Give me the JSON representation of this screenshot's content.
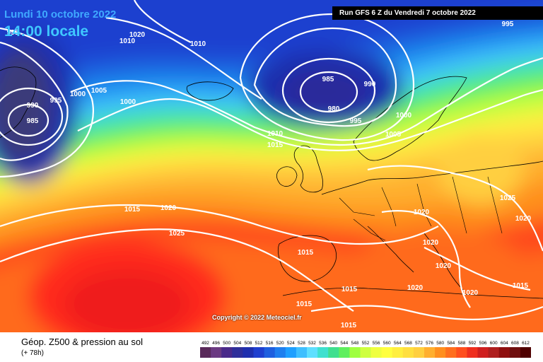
{
  "header": {
    "date_line": "Lundi 10 octobre 2022",
    "time_line": "14:00 locale",
    "run_info": "Run GFS 6 Z du Vendredi 7 octobre 2022"
  },
  "copyright": "Copyright © 2022 Meteociel.fr",
  "footer": {
    "title": "Géop. Z500 & pression au sol",
    "subtitle": "(+ 78h)"
  },
  "scale": {
    "labels": [
      "492",
      "496",
      "500",
      "504",
      "508",
      "512",
      "516",
      "520",
      "524",
      "528",
      "532",
      "536",
      "540",
      "544",
      "548",
      "552",
      "556",
      "560",
      "564",
      "568",
      "572",
      "576",
      "580",
      "584",
      "588",
      "592",
      "596",
      "600",
      "604",
      "608",
      "612"
    ],
    "colors": [
      "#5a2a5a",
      "#6b3a82",
      "#4a2a8a",
      "#2f2f9a",
      "#1f2fae",
      "#1f3fcf",
      "#1f5fdf",
      "#1f7fef",
      "#1f9fff",
      "#3fbfff",
      "#5fdfff",
      "#3fe0cf",
      "#3fdf8f",
      "#5fef5f",
      "#9fff3f",
      "#cfff3f",
      "#efff3f",
      "#ffff3f",
      "#ffef3f",
      "#ffdf3f",
      "#ffcf3f",
      "#ffaf2f",
      "#ff8f1f",
      "#ff6f1f",
      "#ff4f1f",
      "#ef2f1f",
      "#cf1f1f",
      "#af1f1f",
      "#8f0f0f",
      "#6f0f0f",
      "#4f0000"
    ]
  },
  "isobars": [
    {
      "label": "995",
      "color": "#ffffff"
    },
    {
      "label": "1020",
      "color": "#ffffff"
    },
    {
      "label": "1010",
      "color": "#ffffff"
    },
    {
      "label": "1010",
      "color": "#ffffff"
    },
    {
      "label": "990",
      "color": "#ffffff"
    },
    {
      "label": "985",
      "color": "#ffffff"
    },
    {
      "label": "995",
      "color": "#ffffff"
    },
    {
      "label": "1000",
      "color": "#ffffff"
    },
    {
      "label": "1005",
      "color": "#ffffff"
    },
    {
      "label": "1000",
      "color": "#ffffff"
    },
    {
      "label": "985",
      "color": "#ffffff"
    },
    {
      "label": "990",
      "color": "#ffffff"
    },
    {
      "label": "980",
      "color": "#ffffff"
    },
    {
      "label": "995",
      "color": "#ffffff"
    },
    {
      "label": "1000",
      "color": "#ffffff"
    },
    {
      "label": "1005",
      "color": "#ffffff"
    },
    {
      "label": "1010",
      "color": "#ffffff"
    },
    {
      "label": "1015",
      "color": "#ffffff"
    },
    {
      "label": "995",
      "color": "#ffffff"
    },
    {
      "label": "1015",
      "color": "#ffffff"
    },
    {
      "label": "1020",
      "color": "#ffffff"
    },
    {
      "label": "1025",
      "color": "#ffffff"
    },
    {
      "label": "1020",
      "color": "#ffffff"
    },
    {
      "label": "1025",
      "color": "#ffffff"
    },
    {
      "label": "1020",
      "color": "#ffffff"
    },
    {
      "label": "1015",
      "color": "#ffffff"
    },
    {
      "label": "1020",
      "color": "#ffffff"
    },
    {
      "label": "1020",
      "color": "#ffffff"
    },
    {
      "label": "1020",
      "color": "#ffffff"
    },
    {
      "label": "1015",
      "color": "#ffffff"
    },
    {
      "label": "1015",
      "color": "#ffffff"
    },
    {
      "label": "1015",
      "color": "#ffffff"
    },
    {
      "label": "1015",
      "color": "#ffffff"
    },
    {
      "label": "1020",
      "color": "#ffffff"
    }
  ]
}
